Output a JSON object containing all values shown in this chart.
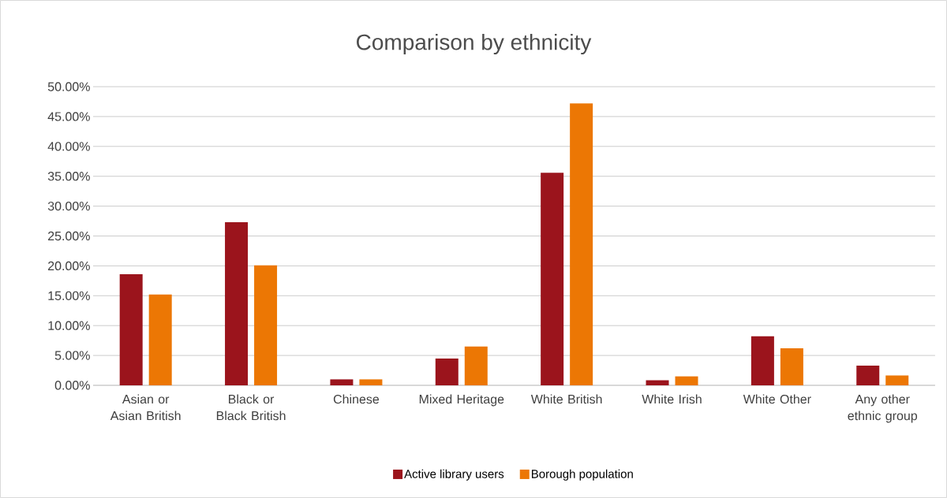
{
  "chart_data": {
    "type": "bar",
    "title": "Comparison by ethnicity",
    "categories": [
      "Asian or Asian British",
      "Black or Black British",
      "Chinese",
      "Mixed Heritage",
      "White British",
      "White Irish",
      "White Other",
      "Any other ethnic group"
    ],
    "series": [
      {
        "name": "Active library users",
        "color": "#9b141c",
        "values": [
          18.6,
          27.3,
          1.0,
          4.5,
          35.6,
          0.85,
          8.2,
          3.3
        ]
      },
      {
        "name": "Borough population",
        "color": "#ec7704",
        "values": [
          15.2,
          20.1,
          1.0,
          6.5,
          47.2,
          1.5,
          6.2,
          1.65
        ]
      }
    ],
    "ylim": [
      0,
      50
    ],
    "yticks": [
      {
        "value": 0,
        "label": "0.00%"
      },
      {
        "value": 5,
        "label": "5.00%"
      },
      {
        "value": 10,
        "label": "10.00%"
      },
      {
        "value": 15,
        "label": "15.00%"
      },
      {
        "value": 20,
        "label": "20.00%"
      },
      {
        "value": 25,
        "label": "25.00%"
      },
      {
        "value": 30,
        "label": "30.00%"
      },
      {
        "value": 35,
        "label": "35.00%"
      },
      {
        "value": 40,
        "label": "40.00%"
      },
      {
        "value": 45,
        "label": "45.00%"
      },
      {
        "value": 50,
        "label": "50.00%"
      }
    ],
    "grid": "y",
    "legend": "bottom"
  }
}
